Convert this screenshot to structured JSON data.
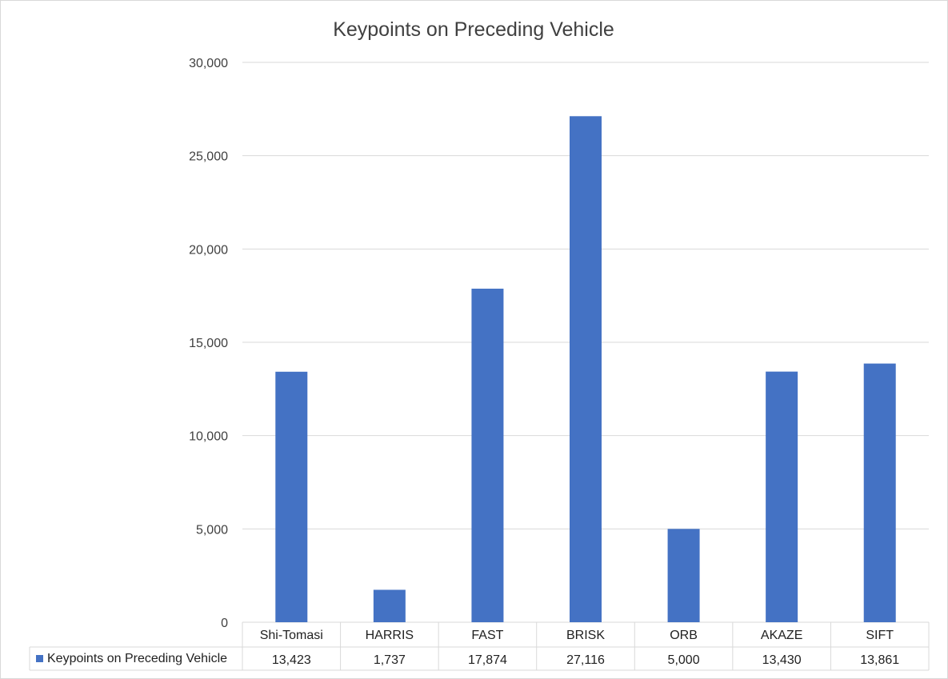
{
  "chart_data": {
    "type": "bar",
    "title": "Keypoints on Preceding Vehicle",
    "categories": [
      "Shi-Tomasi",
      "HARRIS",
      "FAST",
      "BRISK",
      "ORB",
      "AKAZE",
      "SIFT"
    ],
    "series": [
      {
        "name": "Keypoints on Preceding Vehicle",
        "values": [
          13423,
          1737,
          17874,
          27116,
          5000,
          13430,
          13861
        ],
        "value_labels": [
          "13,423",
          "1,737",
          "17,874",
          "27,116",
          "5,000",
          "13,430",
          "13,861"
        ],
        "color": "#4472c4"
      }
    ],
    "ylim": [
      0,
      30000
    ],
    "y_ticks": [
      0,
      5000,
      10000,
      15000,
      20000,
      25000,
      30000
    ],
    "y_tick_labels": [
      "0",
      "5,000",
      "10,000",
      "15,000",
      "20,000",
      "25,000",
      "30,000"
    ],
    "grid": true,
    "legend": "data-table",
    "xlabel": "",
    "ylabel": ""
  }
}
